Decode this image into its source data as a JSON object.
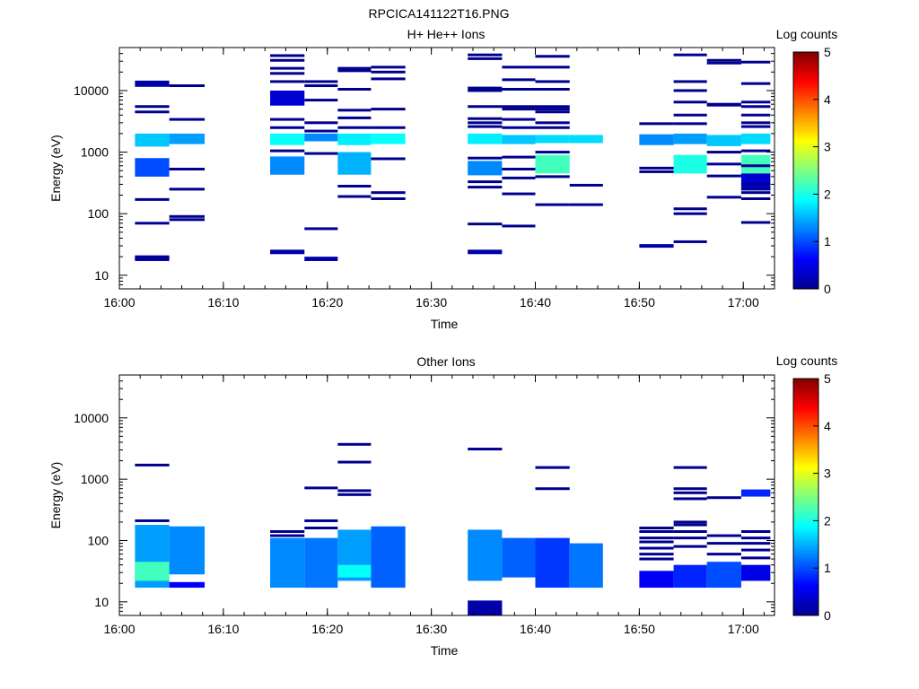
{
  "figure_title": "RPCICA141122T16.PNG",
  "colors": {
    "background": "#ffffff",
    "axis": "#000000",
    "colormap": "jet"
  },
  "chart_data": [
    {
      "type": "heatmap",
      "title": "H+ He++ Ions",
      "xlabel": "Time",
      "ylabel": "Energy (eV)",
      "y_scale": "log",
      "ylim": [
        6,
        50000
      ],
      "xlim": [
        "16:00",
        "17:03"
      ],
      "x_ticks": [
        "16:00",
        "16:10",
        "16:20",
        "16:30",
        "16:40",
        "16:50",
        "17:00"
      ],
      "y_ticks": [
        "10",
        "100",
        "1000",
        "10000"
      ],
      "colorbar": {
        "label": "Log counts",
        "range": [
          0,
          5
        ],
        "ticks": [
          "0",
          "1",
          "2",
          "3",
          "4",
          "5"
        ]
      },
      "cells": [
        {
          "t0": "16:01.5",
          "t1": "16:04.8",
          "e_lo": 1230,
          "e_hi": 2000,
          "v": 1.6
        },
        {
          "t0": "16:01.5",
          "t1": "16:04.8",
          "e_lo": 400,
          "e_hi": 800,
          "v": 1.0
        },
        {
          "t0": "16:01.5",
          "t1": "16:04.8",
          "e_lo": 11500,
          "e_hi": 14500,
          "v": 0.2
        },
        {
          "t0": "16:01.5",
          "t1": "16:04.8",
          "e_lo": 17,
          "e_hi": 21,
          "v": 0.2
        },
        {
          "t0": "16:04.8",
          "t1": "16:08.2",
          "e_lo": 1350,
          "e_hi": 2000,
          "v": 1.4
        },
        {
          "t0": "16:14.5",
          "t1": "16:17.8",
          "e_lo": 1300,
          "e_hi": 2000,
          "v": 1.9
        },
        {
          "t0": "16:14.5",
          "t1": "16:17.8",
          "e_lo": 430,
          "e_hi": 850,
          "v": 1.3
        },
        {
          "t0": "16:14.5",
          "t1": "16:17.8",
          "e_lo": 5700,
          "e_hi": 10000,
          "v": 0.4
        },
        {
          "t0": "16:14.5",
          "t1": "16:17.8",
          "e_lo": 22,
          "e_hi": 26,
          "v": 0.2
        },
        {
          "t0": "16:17.8",
          "t1": "16:21.0",
          "e_lo": 1500,
          "e_hi": 2000,
          "v": 1.3
        },
        {
          "t0": "16:17.8",
          "t1": "16:21.0",
          "e_lo": 17,
          "e_hi": 20,
          "v": 0.2
        },
        {
          "t0": "16:21.0",
          "t1": "16:24.2",
          "e_lo": 1300,
          "e_hi": 2000,
          "v": 1.8
        },
        {
          "t0": "16:21.0",
          "t1": "16:24.2",
          "e_lo": 430,
          "e_hi": 1000,
          "v": 1.5
        },
        {
          "t0": "16:24.2",
          "t1": "16:27.5",
          "e_lo": 1350,
          "e_hi": 2000,
          "v": 1.9
        },
        {
          "t0": "16:33.5",
          "t1": "16:36.8",
          "e_lo": 1350,
          "e_hi": 2000,
          "v": 1.8
        },
        {
          "t0": "16:33.5",
          "t1": "16:36.8",
          "e_lo": 420,
          "e_hi": 720,
          "v": 1.3
        },
        {
          "t0": "16:33.5",
          "t1": "16:36.8",
          "e_lo": 22,
          "e_hi": 26,
          "v": 0.2
        },
        {
          "t0": "16:36.8",
          "t1": "16:40.0",
          "e_lo": 1350,
          "e_hi": 1900,
          "v": 1.6
        },
        {
          "t0": "16:40.0",
          "t1": "16:43.3",
          "e_lo": 1400,
          "e_hi": 1900,
          "v": 1.7
        },
        {
          "t0": "16:40.0",
          "t1": "16:43.3",
          "e_lo": 450,
          "e_hi": 900,
          "v": 2.2
        },
        {
          "t0": "16:43.3",
          "t1": "16:46.5",
          "e_lo": 1400,
          "e_hi": 1900,
          "v": 1.7
        },
        {
          "t0": "16:50.0",
          "t1": "16:53.3",
          "e_lo": 1300,
          "e_hi": 1950,
          "v": 1.3
        },
        {
          "t0": "16:50.0",
          "t1": "16:53.3",
          "e_lo": 28,
          "e_hi": 32,
          "v": 0.2
        },
        {
          "t0": "16:53.3",
          "t1": "16:56.5",
          "e_lo": 1350,
          "e_hi": 2000,
          "v": 1.4
        },
        {
          "t0": "16:53.3",
          "t1": "16:56.5",
          "e_lo": 450,
          "e_hi": 900,
          "v": 2.0
        },
        {
          "t0": "16:56.5",
          "t1": "16:59.8",
          "e_lo": 1250,
          "e_hi": 1900,
          "v": 1.6
        },
        {
          "t0": "16:59.8",
          "t1": "17:02.6",
          "e_lo": 1350,
          "e_hi": 2000,
          "v": 1.7
        },
        {
          "t0": "16:59.8",
          "t1": "17:02.6",
          "e_lo": 450,
          "e_hi": 900,
          "v": 2.2
        },
        {
          "t0": "16:59.8",
          "t1": "17:02.6",
          "e_lo": 250,
          "e_hi": 450,
          "v": 0.4
        }
      ],
      "lines": [
        {
          "t0": "16:01.5",
          "t1": "16:04.8",
          "e": [
            170,
            70,
            5500,
            4500,
            19
          ]
        },
        {
          "t0": "16:04.8",
          "t1": "16:08.2",
          "e": [
            12000,
            3400,
            530,
            250,
            90,
            80
          ]
        },
        {
          "t0": "16:14.5",
          "t1": "16:17.8",
          "e": [
            37000,
            31000,
            23000,
            19000,
            14000,
            3400,
            2500,
            1050
          ]
        },
        {
          "t0": "16:17.8",
          "t1": "16:21.0",
          "e": [
            14000,
            12000,
            7000,
            3000,
            2200,
            950,
            57
          ]
        },
        {
          "t0": "16:21.0",
          "t1": "16:24.2",
          "e": [
            23000,
            21000,
            10500,
            4800,
            3600,
            2500,
            280,
            190
          ]
        },
        {
          "t0": "16:24.2",
          "t1": "16:27.5",
          "e": [
            24000,
            20000,
            15500,
            5000,
            2500,
            780,
            220,
            175
          ]
        },
        {
          "t0": "16:33.5",
          "t1": "16:36.8",
          "e": [
            38000,
            33000,
            11000,
            10000,
            5500,
            3500,
            3000,
            2600,
            800,
            330,
            270,
            68
          ]
        },
        {
          "t0": "16:36.8",
          "t1": "16:40.0",
          "e": [
            24000,
            15000,
            10500,
            5500,
            5000,
            3400,
            2500,
            830,
            530,
            380,
            210,
            63
          ]
        },
        {
          "t0": "16:40.0",
          "t1": "16:43.3",
          "e": [
            36000,
            24000,
            14000,
            10500,
            5500,
            5000,
            4500,
            3000,
            2500,
            1000,
            400,
            140
          ]
        },
        {
          "t0": "16:43.3",
          "t1": "16:46.5",
          "e": [
            290,
            140
          ]
        },
        {
          "t0": "16:50.0",
          "t1": "16:53.3",
          "e": [
            2900,
            550,
            480
          ]
        },
        {
          "t0": "16:53.3",
          "t1": "16:56.5",
          "e": [
            38000,
            14000,
            10000,
            6500,
            4000,
            2900,
            120,
            100,
            35
          ]
        },
        {
          "t0": "16:56.5",
          "t1": "16:59.8",
          "e": [
            31000,
            28000,
            6000,
            5800,
            1000,
            640,
            410,
            185
          ]
        },
        {
          "t0": "16:59.8",
          "t1": "17:02.6",
          "e": [
            29000,
            13000,
            6500,
            5500,
            4000,
            3000,
            2600,
            1050,
            600,
            300,
            250,
            220,
            175,
            72
          ]
        }
      ]
    },
    {
      "type": "heatmap",
      "title": "Other Ions",
      "xlabel": "Time",
      "ylabel": "Energy (eV)",
      "y_scale": "log",
      "ylim": [
        6,
        50000
      ],
      "xlim": [
        "16:00",
        "17:03"
      ],
      "x_ticks": [
        "16:00",
        "16:10",
        "16:20",
        "16:30",
        "16:40",
        "16:50",
        "17:00"
      ],
      "y_ticks": [
        "10",
        "100",
        "1000",
        "10000"
      ],
      "colorbar": {
        "label": "Log counts",
        "range": [
          0,
          5
        ],
        "ticks": [
          "0",
          "1",
          "2",
          "3",
          "4",
          "5"
        ]
      },
      "cells": [
        {
          "t0": "16:01.5",
          "t1": "16:04.8",
          "e_lo": 17,
          "e_hi": 180,
          "v": 1.4
        },
        {
          "t0": "16:01.5",
          "t1": "16:04.8",
          "e_lo": 22,
          "e_hi": 45,
          "v": 2.2
        },
        {
          "t0": "16:04.8",
          "t1": "16:08.2",
          "e_lo": 28,
          "e_hi": 170,
          "v": 1.3
        },
        {
          "t0": "16:04.8",
          "t1": "16:08.2",
          "e_lo": 17,
          "e_hi": 21,
          "v": 0.6
        },
        {
          "t0": "16:14.5",
          "t1": "16:17.8",
          "e_lo": 17,
          "e_hi": 110,
          "v": 1.3
        },
        {
          "t0": "16:17.8",
          "t1": "16:21.0",
          "e_lo": 17,
          "e_hi": 110,
          "v": 1.2
        },
        {
          "t0": "16:21.0",
          "t1": "16:24.2",
          "e_lo": 22,
          "e_hi": 150,
          "v": 1.4
        },
        {
          "t0": "16:21.0",
          "t1": "16:24.2",
          "e_lo": 25,
          "e_hi": 40,
          "v": 1.9
        },
        {
          "t0": "16:24.2",
          "t1": "16:27.5",
          "e_lo": 17,
          "e_hi": 170,
          "v": 1.1
        },
        {
          "t0": "16:33.5",
          "t1": "16:36.8",
          "e_lo": 22,
          "e_hi": 150,
          "v": 1.3
        },
        {
          "t0": "16:33.5",
          "t1": "16:36.8",
          "e_lo": 6,
          "e_hi": 10.5,
          "v": 0.2
        },
        {
          "t0": "16:36.8",
          "t1": "16:40.0",
          "e_lo": 25,
          "e_hi": 110,
          "v": 1.1
        },
        {
          "t0": "16:40.0",
          "t1": "16:43.3",
          "e_lo": 17,
          "e_hi": 110,
          "v": 0.9
        },
        {
          "t0": "16:43.3",
          "t1": "16:46.5",
          "e_lo": 17,
          "e_hi": 90,
          "v": 1.2
        },
        {
          "t0": "16:50.0",
          "t1": "16:53.3",
          "e_lo": 17,
          "e_hi": 32,
          "v": 0.6
        },
        {
          "t0": "16:53.3",
          "t1": "16:56.5",
          "e_lo": 17,
          "e_hi": 40,
          "v": 0.8
        },
        {
          "t0": "16:56.5",
          "t1": "16:59.8",
          "e_lo": 17,
          "e_hi": 45,
          "v": 1.0
        },
        {
          "t0": "16:59.8",
          "t1": "17:02.6",
          "e_lo": 22,
          "e_hi": 40,
          "v": 0.5
        },
        {
          "t0": "16:59.8",
          "t1": "17:02.6",
          "e_lo": 520,
          "e_hi": 680,
          "v": 0.8
        }
      ],
      "lines": [
        {
          "t0": "16:01.5",
          "t1": "16:04.8",
          "e": [
            1700,
            210
          ]
        },
        {
          "t0": "16:14.5",
          "t1": "16:17.8",
          "e": [
            140,
            120
          ]
        },
        {
          "t0": "16:17.8",
          "t1": "16:21.0",
          "e": [
            720,
            210,
            160
          ]
        },
        {
          "t0": "16:21.0",
          "t1": "16:24.2",
          "e": [
            3700,
            1900,
            650,
            560
          ]
        },
        {
          "t0": "16:33.5",
          "t1": "16:36.8",
          "e": [
            3100
          ]
        },
        {
          "t0": "16:40.0",
          "t1": "16:43.3",
          "e": [
            1550,
            700
          ]
        },
        {
          "t0": "16:50.0",
          "t1": "16:53.3",
          "e": [
            160,
            140,
            110,
            95,
            75,
            60,
            50
          ]
        },
        {
          "t0": "16:53.3",
          "t1": "16:56.5",
          "e": [
            1550,
            700,
            600,
            480,
            200,
            180,
            140,
            110,
            80
          ]
        },
        {
          "t0": "16:56.5",
          "t1": "16:59.8",
          "e": [
            500,
            120,
            90,
            60
          ]
        },
        {
          "t0": "16:59.8",
          "t1": "17:02.6",
          "e": [
            140,
            110,
            90,
            70,
            52
          ]
        }
      ]
    }
  ]
}
